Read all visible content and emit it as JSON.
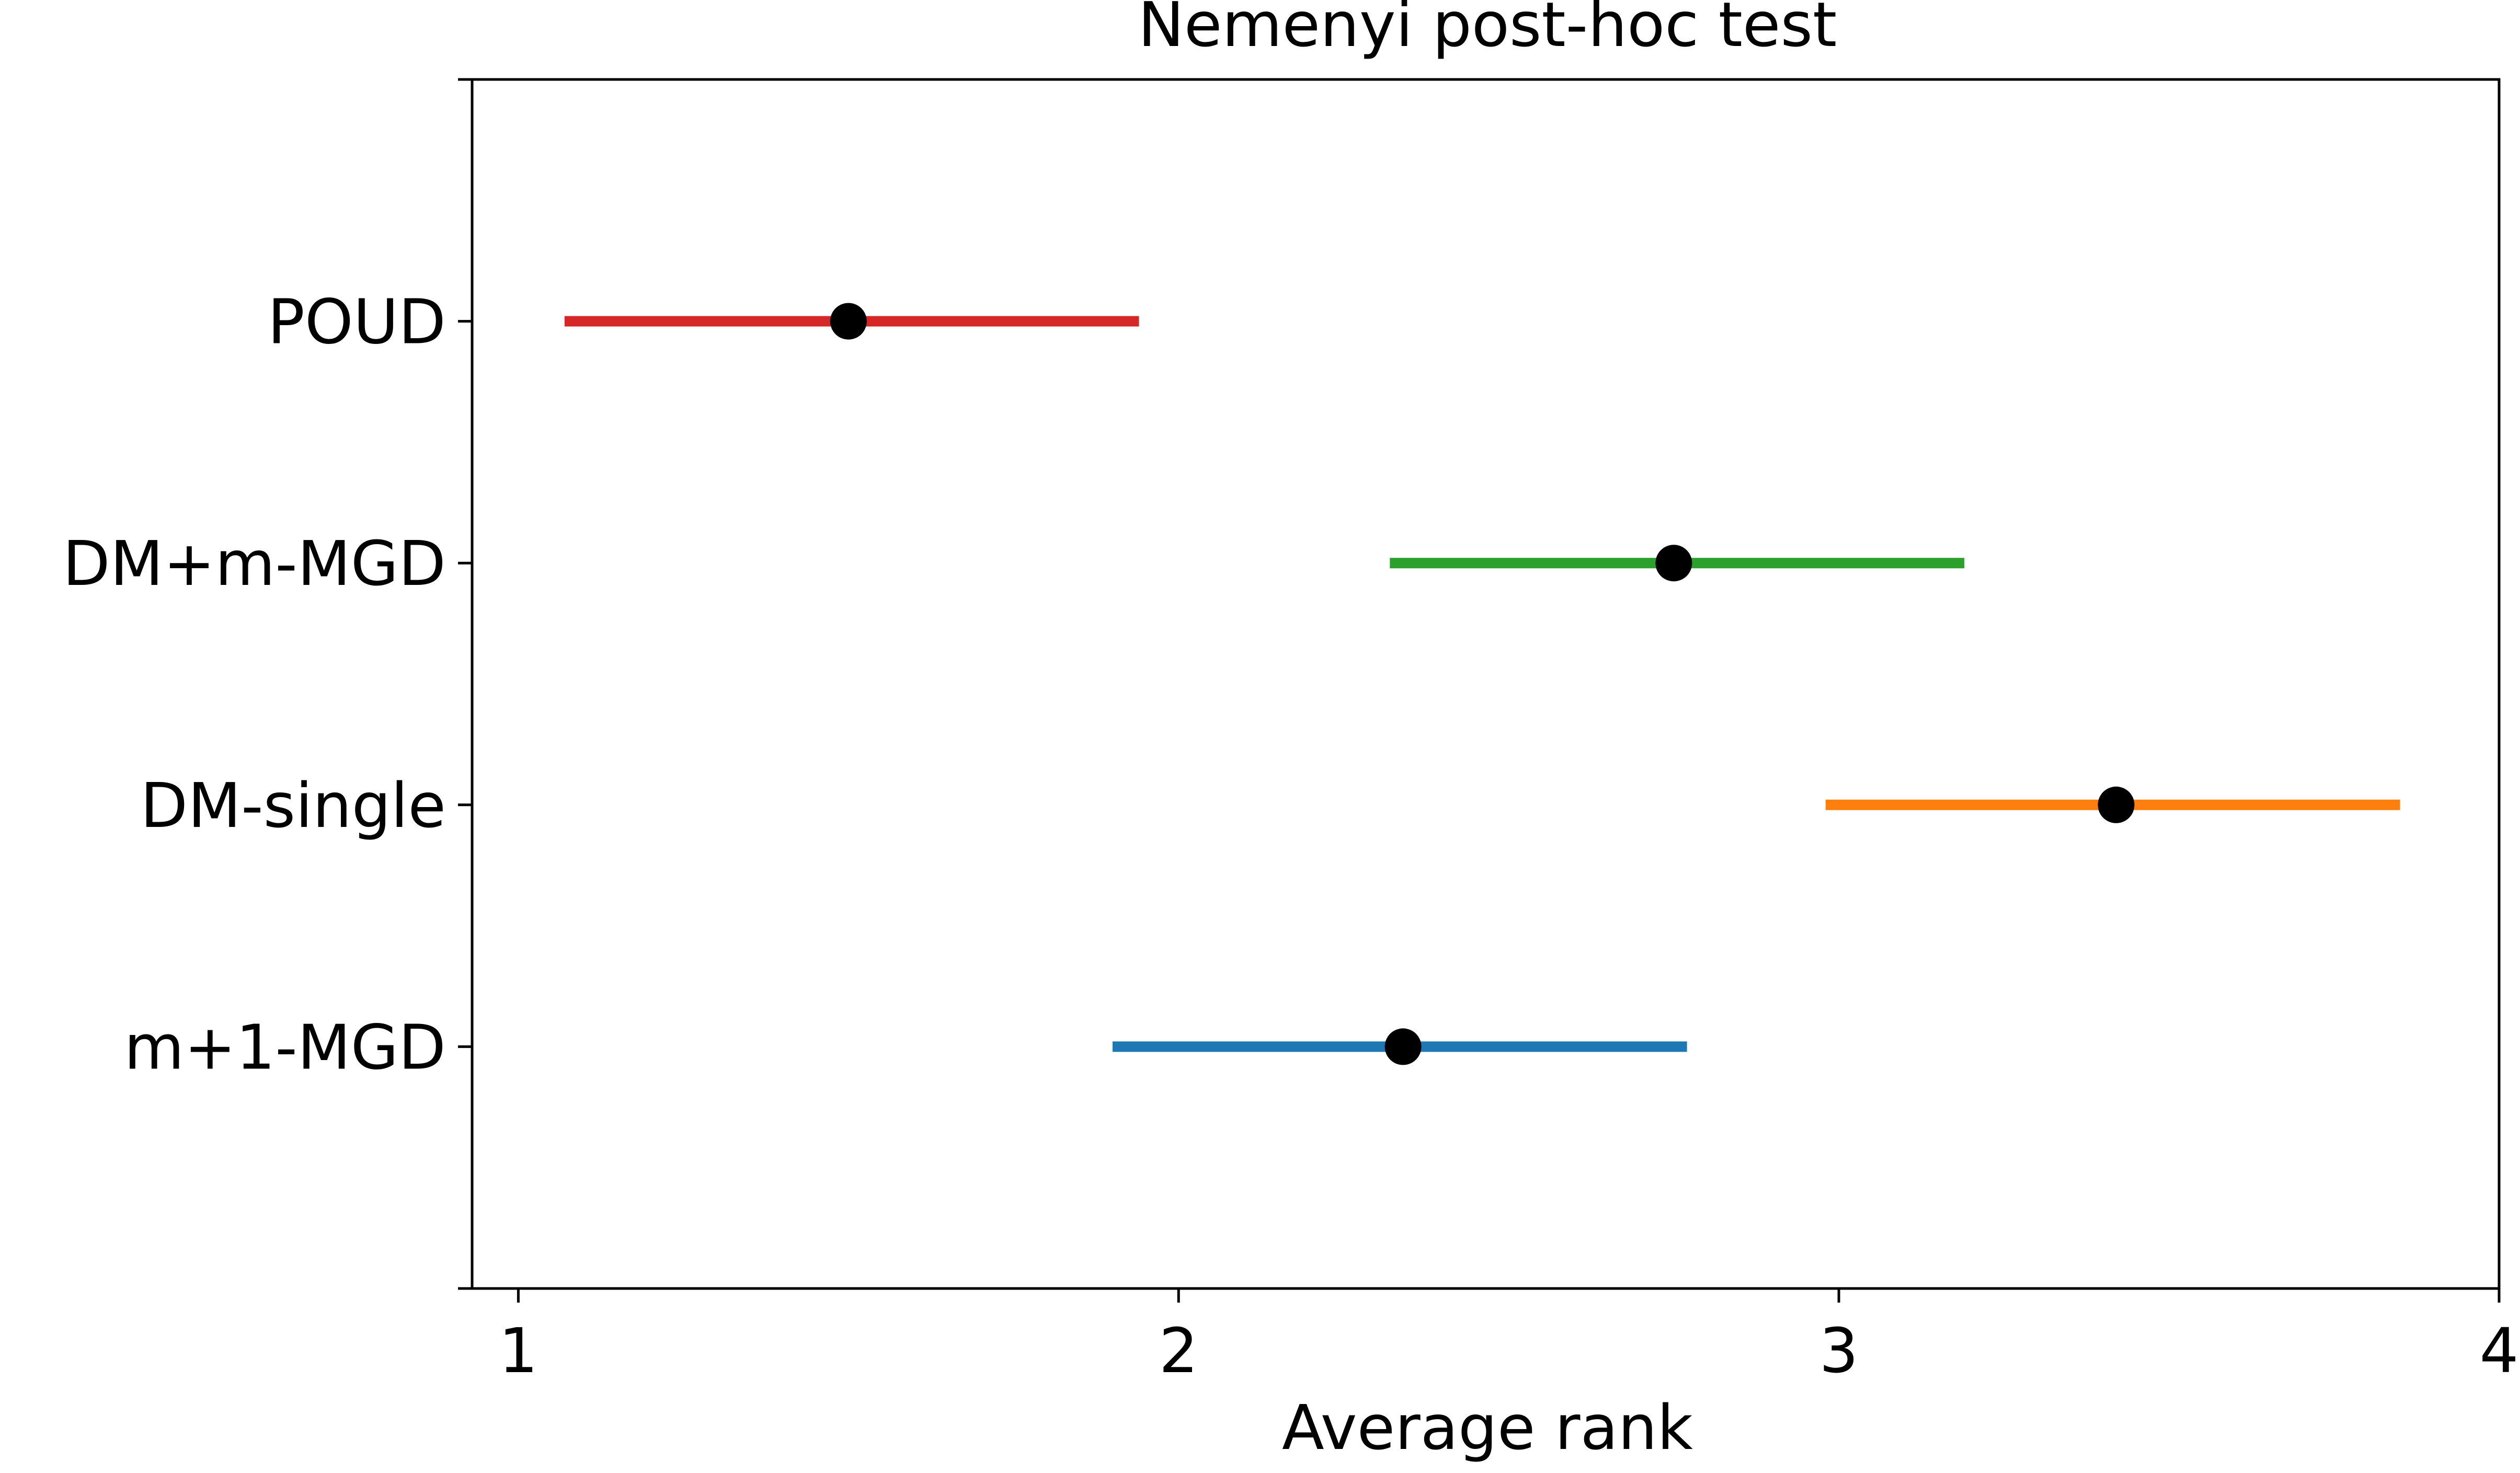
{
  "chart_data": {
    "type": "scatter",
    "title": "Nemenyi post-hoc test",
    "xlabel": "Average rank",
    "ylabel": "",
    "xlim": [
      0.93,
      4.0
    ],
    "x_ticks": [
      1,
      2,
      3,
      4
    ],
    "x_tick_labels": [
      "1",
      "2",
      "3",
      "4"
    ],
    "grid": false,
    "legend": "none",
    "series": [
      {
        "name": "POUD",
        "rank": 1.5,
        "ci_low": 1.07,
        "ci_high": 1.94,
        "color": "#d62728"
      },
      {
        "name": "DM+m-MGD",
        "rank": 2.75,
        "ci_low": 2.32,
        "ci_high": 3.19,
        "color": "#2ca02c"
      },
      {
        "name": "DM-single",
        "rank": 3.42,
        "ci_low": 2.98,
        "ci_high": 3.85,
        "color": "#ff7f0e"
      },
      {
        "name": "m+1-MGD",
        "rank": 2.34,
        "ci_low": 1.9,
        "ci_high": 2.77,
        "color": "#1f77b4"
      }
    ],
    "marker_color": "#000000"
  }
}
